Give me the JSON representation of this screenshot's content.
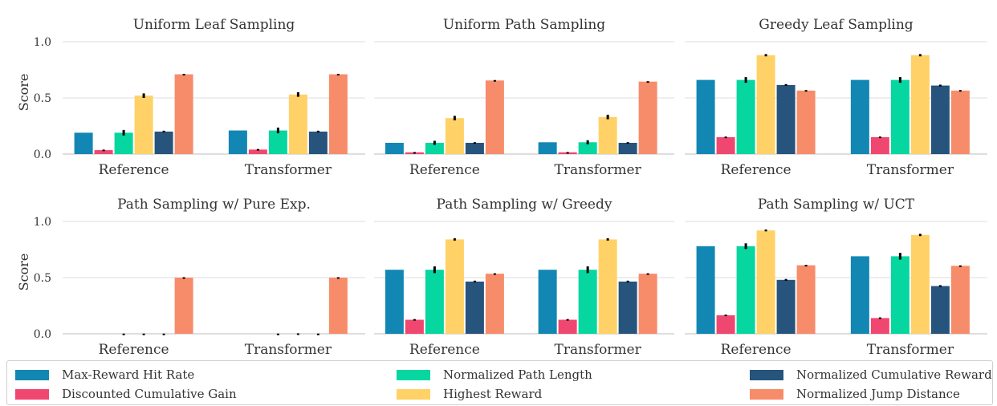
{
  "figure": {
    "ylabel": "Score",
    "yticks": [
      "0.0",
      "0.5",
      "1.0"
    ],
    "categories": [
      "Reference",
      "Transformer"
    ]
  },
  "legend": [
    {
      "name": "Max-Reward Hit Rate",
      "color": "#1287b4"
    },
    {
      "name": "Discounted Cumulative Gain",
      "color": "#ef476f"
    },
    {
      "name": "Normalized Path Length",
      "color": "#06d6a0"
    },
    {
      "name": "Highest Reward",
      "color": "#ffd166"
    },
    {
      "name": "Normalized Cumulative Reward",
      "color": "#26547c"
    },
    {
      "name": "Normalized Jump Distance",
      "color": "#f78c6b"
    }
  ],
  "chart_data": [
    {
      "type": "bar",
      "title": "Uniform Leaf Sampling",
      "categories": [
        "Reference",
        "Transformer"
      ],
      "ylim": [
        0,
        1.1
      ],
      "series": [
        {
          "name": "Max-Reward Hit Rate",
          "values": [
            0.19,
            0.21
          ],
          "errors": [
            0.0,
            0.0
          ]
        },
        {
          "name": "Discounted Cumulative Gain",
          "values": [
            0.035,
            0.04
          ],
          "errors": [
            0.005,
            0.005
          ]
        },
        {
          "name": "Normalized Path Length",
          "values": [
            0.19,
            0.21
          ],
          "errors": [
            0.025,
            0.025
          ]
        },
        {
          "name": "Highest Reward",
          "values": [
            0.52,
            0.53
          ],
          "errors": [
            0.02,
            0.02
          ]
        },
        {
          "name": "Normalized Cumulative Reward",
          "values": [
            0.2,
            0.2
          ],
          "errors": [
            0.008,
            0.008
          ]
        },
        {
          "name": "Normalized Jump Distance",
          "values": [
            0.71,
            0.71
          ],
          "errors": [
            0.004,
            0.004
          ]
        }
      ]
    },
    {
      "type": "bar",
      "title": "Uniform Path Sampling",
      "categories": [
        "Reference",
        "Transformer"
      ],
      "ylim": [
        0,
        1.1
      ],
      "series": [
        {
          "name": "Max-Reward Hit Rate",
          "values": [
            0.1,
            0.105
          ],
          "errors": [
            0.0,
            0.0
          ]
        },
        {
          "name": "Discounted Cumulative Gain",
          "values": [
            0.015,
            0.015
          ],
          "errors": [
            0.003,
            0.003
          ]
        },
        {
          "name": "Normalized Path Length",
          "values": [
            0.1,
            0.105
          ],
          "errors": [
            0.018,
            0.018
          ]
        },
        {
          "name": "Highest Reward",
          "values": [
            0.32,
            0.33
          ],
          "errors": [
            0.02,
            0.02
          ]
        },
        {
          "name": "Normalized Cumulative Reward",
          "values": [
            0.1,
            0.1
          ],
          "errors": [
            0.006,
            0.006
          ]
        },
        {
          "name": "Normalized Jump Distance",
          "values": [
            0.655,
            0.645
          ],
          "errors": [
            0.004,
            0.004
          ]
        }
      ]
    },
    {
      "type": "bar",
      "title": "Greedy Leaf Sampling",
      "categories": [
        "Reference",
        "Transformer"
      ],
      "ylim": [
        0,
        1.1
      ],
      "series": [
        {
          "name": "Max-Reward Hit Rate",
          "values": [
            0.66,
            0.66
          ],
          "errors": [
            0.0,
            0.0
          ]
        },
        {
          "name": "Discounted Cumulative Gain",
          "values": [
            0.15,
            0.15
          ],
          "errors": [
            0.006,
            0.006
          ]
        },
        {
          "name": "Normalized Path Length",
          "values": [
            0.66,
            0.66
          ],
          "errors": [
            0.025,
            0.025
          ]
        },
        {
          "name": "Highest Reward",
          "values": [
            0.88,
            0.88
          ],
          "errors": [
            0.01,
            0.01
          ]
        },
        {
          "name": "Normalized Cumulative Reward",
          "values": [
            0.615,
            0.61
          ],
          "errors": [
            0.008,
            0.008
          ]
        },
        {
          "name": "Normalized Jump Distance",
          "values": [
            0.565,
            0.565
          ],
          "errors": [
            0.005,
            0.005
          ]
        }
      ]
    },
    {
      "type": "bar",
      "title": "Path Sampling w/ Pure Exp.",
      "categories": [
        "Reference",
        "Transformer"
      ],
      "ylim": [
        0,
        1.1
      ],
      "series": [
        {
          "name": "Max-Reward Hit Rate",
          "values": [
            0.0,
            0.0
          ],
          "errors": [
            0.0,
            0.0
          ]
        },
        {
          "name": "Discounted Cumulative Gain",
          "values": [
            0.0,
            0.0
          ],
          "errors": [
            0.0,
            0.0
          ]
        },
        {
          "name": "Normalized Path Length",
          "values": [
            0.0,
            0.0
          ],
          "errors": [
            0.002,
            0.002
          ]
        },
        {
          "name": "Highest Reward",
          "values": [
            0.0,
            0.0
          ],
          "errors": [
            0.002,
            0.004
          ]
        },
        {
          "name": "Normalized Cumulative Reward",
          "values": [
            0.0,
            0.0
          ],
          "errors": [
            0.002,
            0.002
          ]
        },
        {
          "name": "Normalized Jump Distance",
          "values": [
            0.5,
            0.5
          ],
          "errors": [
            0.004,
            0.004
          ]
        }
      ]
    },
    {
      "type": "bar",
      "title": "Path Sampling w/ Greedy",
      "categories": [
        "Reference",
        "Transformer"
      ],
      "ylim": [
        0,
        1.1
      ],
      "series": [
        {
          "name": "Max-Reward Hit Rate",
          "values": [
            0.57,
            0.57
          ],
          "errors": [
            0.0,
            0.0
          ]
        },
        {
          "name": "Discounted Cumulative Gain",
          "values": [
            0.125,
            0.125
          ],
          "errors": [
            0.006,
            0.006
          ]
        },
        {
          "name": "Normalized Path Length",
          "values": [
            0.57,
            0.57
          ],
          "errors": [
            0.03,
            0.03
          ]
        },
        {
          "name": "Highest Reward",
          "values": [
            0.84,
            0.84
          ],
          "errors": [
            0.01,
            0.01
          ]
        },
        {
          "name": "Normalized Cumulative Reward",
          "values": [
            0.465,
            0.465
          ],
          "errors": [
            0.008,
            0.008
          ]
        },
        {
          "name": "Normalized Jump Distance",
          "values": [
            0.535,
            0.535
          ],
          "errors": [
            0.004,
            0.004
          ]
        }
      ]
    },
    {
      "type": "bar",
      "title": "Path Sampling w/ UCT",
      "categories": [
        "Reference",
        "Transformer"
      ],
      "ylim": [
        0,
        1.1
      ],
      "series": [
        {
          "name": "Max-Reward Hit Rate",
          "values": [
            0.78,
            0.69
          ],
          "errors": [
            0.0,
            0.0
          ]
        },
        {
          "name": "Discounted Cumulative Gain",
          "values": [
            0.165,
            0.14
          ],
          "errors": [
            0.006,
            0.006
          ]
        },
        {
          "name": "Normalized Path Length",
          "values": [
            0.78,
            0.69
          ],
          "errors": [
            0.025,
            0.03
          ]
        },
        {
          "name": "Highest Reward",
          "values": [
            0.92,
            0.88
          ],
          "errors": [
            0.008,
            0.01
          ]
        },
        {
          "name": "Normalized Cumulative Reward",
          "values": [
            0.48,
            0.425
          ],
          "errors": [
            0.008,
            0.008
          ]
        },
        {
          "name": "Normalized Jump Distance",
          "values": [
            0.61,
            0.605
          ],
          "errors": [
            0.004,
            0.004
          ]
        }
      ]
    }
  ]
}
